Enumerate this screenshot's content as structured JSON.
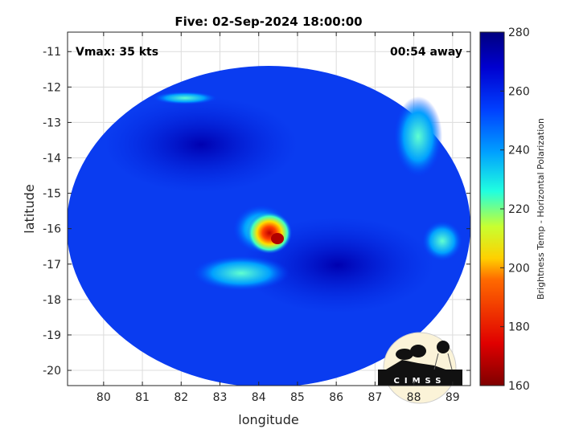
{
  "chart_data": {
    "type": "heatmap",
    "title": "Five: 02-Sep-2024 18:00:00",
    "xlabel": "longitude",
    "ylabel": "latitude",
    "xlim": [
      79.07,
      89.46
    ],
    "ylim": [
      -20.43,
      -10.45
    ],
    "xticks": [
      "80",
      "81",
      "82",
      "83",
      "84",
      "85",
      "86",
      "87",
      "88",
      "89"
    ],
    "yticks": [
      "-11",
      "-12",
      "-13",
      "-14",
      "-15",
      "-16",
      "-17",
      "-18",
      "-19",
      "-20"
    ],
    "grid": true,
    "annotations": {
      "vmax": "Vmax: 35 kts",
      "time_offset": "00:54 away"
    },
    "colorbar": {
      "label": "Brightness Temp - Horizontal Polarization",
      "range": [
        160,
        280
      ],
      "ticks": [
        "160",
        "180",
        "200",
        "220",
        "240",
        "260",
        "280"
      ],
      "colormap": [
        "#7f0000",
        "#ff0000",
        "#ffff00",
        "#00ffff",
        "#0000ff",
        "#00007f"
      ]
    },
    "features": [
      {
        "name": "storm core",
        "lon": 84.45,
        "lat": -16.25,
        "min_value": 170
      },
      {
        "name": "convective band",
        "lon": 84.0,
        "lat": -16.0,
        "approx_value": 225
      },
      {
        "name": "outer band",
        "lon": 83.7,
        "lat": -17.5,
        "approx_value": 240
      }
    ],
    "logo": "CIMSS"
  }
}
